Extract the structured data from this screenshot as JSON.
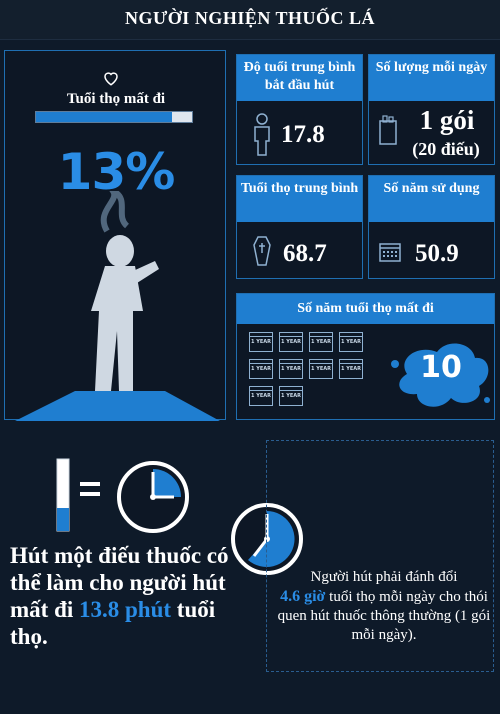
{
  "header": {
    "title": "NGƯỜI NGHIỆN THUỐC LÁ"
  },
  "life_lost": {
    "label": "Tuổi thọ mất đi",
    "percent_text": "13%",
    "percent_value": 13
  },
  "cards": {
    "start_age": {
      "label": "Độ tuổi trung bình bắt đầu hút",
      "value": "17.8"
    },
    "daily_amount": {
      "label": "Số lượng mỗi ngày",
      "value": "1 gói",
      "value_note": "(20 điếu)"
    },
    "life_expectancy": {
      "label": "Tuổi thọ trung bình",
      "value": "68.7"
    },
    "years_used": {
      "label": "Số năm sử dụng",
      "value": "50.9"
    },
    "years_lost": {
      "label": "Số năm tuổi thọ mất đi",
      "value": "10",
      "calendar_label": "1 YEAR",
      "calendar_count": 10
    }
  },
  "cigarette_text": {
    "part1": "Hút một điếu thuốc có thể làm cho người hút mất đi",
    "highlight": "13.8 phút",
    "part2": "tuổi thọ."
  },
  "trade_text": {
    "part1": "Người hút phải đánh đổi",
    "highlight": "4.6 giờ",
    "part2": "tuổi thọ mỗi ngày cho thói quen hút thuốc thông thường (1 gói mỗi ngày)."
  },
  "colors": {
    "accent": "#1f7ed0",
    "background": "#0e1a29",
    "highlight_text": "#2a8de6"
  },
  "icons": [
    "heart-icon",
    "person-icon",
    "cigarette-pack-icon",
    "coffin-icon",
    "calendar-icon",
    "clock-icon",
    "cigarette-icon"
  ]
}
